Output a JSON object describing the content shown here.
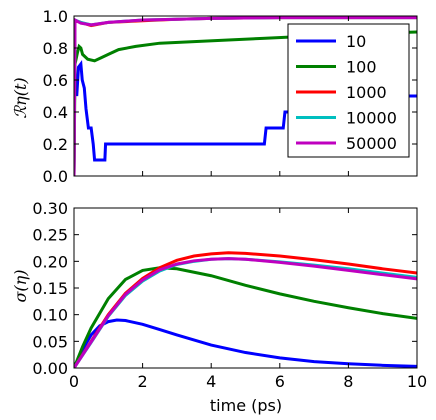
{
  "chart_data": [
    {
      "type": "line",
      "panel": "top",
      "ylabel": "ℛη(t)",
      "xlim": [
        0,
        10
      ],
      "ylim": [
        0,
        1.0
      ],
      "yticks": [
        "0.0",
        "0.2",
        "0.4",
        "0.6",
        "0.8",
        "1.0"
      ],
      "legend_position": "right",
      "series": [
        {
          "name": "10",
          "color": "#0000ff",
          "points": [
            [
              0,
              0
            ],
            [
              0.02,
              0.62
            ],
            [
              0.08,
              0.5
            ],
            [
              0.13,
              0.68
            ],
            [
              0.2,
              0.7
            ],
            [
              0.24,
              0.6
            ],
            [
              0.3,
              0.55
            ],
            [
              0.35,
              0.42
            ],
            [
              0.42,
              0.3
            ],
            [
              0.5,
              0.3
            ],
            [
              0.56,
              0.2
            ],
            [
              0.6,
              0.1
            ],
            [
              0.9,
              0.1
            ],
            [
              0.92,
              0.2
            ],
            [
              5.55,
              0.2
            ],
            [
              5.6,
              0.3
            ],
            [
              6.1,
              0.3
            ],
            [
              6.15,
              0.4
            ],
            [
              7.2,
              0.4
            ],
            [
              7.25,
              0.5
            ],
            [
              10,
              0.5
            ]
          ]
        },
        {
          "name": "100",
          "color": "#008000",
          "points": [
            [
              0,
              0
            ],
            [
              0.03,
              0.7
            ],
            [
              0.1,
              0.77
            ],
            [
              0.15,
              0.81
            ],
            [
              0.2,
              0.8
            ],
            [
              0.25,
              0.76
            ],
            [
              0.3,
              0.75
            ],
            [
              0.4,
              0.73
            ],
            [
              0.6,
              0.72
            ],
            [
              0.8,
              0.74
            ],
            [
              1.0,
              0.76
            ],
            [
              1.3,
              0.79
            ],
            [
              1.8,
              0.81
            ],
            [
              2.5,
              0.83
            ],
            [
              3.5,
              0.84
            ],
            [
              4.5,
              0.85
            ],
            [
              5.5,
              0.86
            ],
            [
              6.5,
              0.87
            ],
            [
              7.5,
              0.88
            ],
            [
              8.5,
              0.89
            ],
            [
              10,
              0.9
            ]
          ]
        },
        {
          "name": "1000",
          "color": "#ff0000",
          "points": [
            [
              0,
              0
            ],
            [
              0.03,
              0.97
            ],
            [
              0.2,
              0.96
            ],
            [
              0.5,
              0.94
            ],
            [
              1.0,
              0.96
            ],
            [
              2,
              0.97
            ],
            [
              3,
              0.98
            ],
            [
              4,
              0.985
            ],
            [
              6,
              0.99
            ],
            [
              8,
              0.99
            ],
            [
              10,
              0.99
            ]
          ]
        },
        {
          "name": "10000",
          "color": "#00bfbf",
          "points": [
            [
              0,
              0
            ],
            [
              0.03,
              0.975
            ],
            [
              0.2,
              0.96
            ],
            [
              0.5,
              0.945
            ],
            [
              1.0,
              0.96
            ],
            [
              2,
              0.975
            ],
            [
              3,
              0.98
            ],
            [
              4,
              0.985
            ],
            [
              6,
              0.99
            ],
            [
              8,
              0.99
            ],
            [
              10,
              0.99
            ]
          ]
        },
        {
          "name": "50000",
          "color": "#bf00bf",
          "points": [
            [
              0,
              0
            ],
            [
              0.03,
              0.975
            ],
            [
              0.2,
              0.955
            ],
            [
              0.5,
              0.945
            ],
            [
              1.0,
              0.96
            ],
            [
              2,
              0.975
            ],
            [
              3,
              0.98
            ],
            [
              4,
              0.985
            ],
            [
              6,
              0.99
            ],
            [
              8,
              0.99
            ],
            [
              10,
              0.99
            ]
          ]
        }
      ]
    },
    {
      "type": "line",
      "panel": "bottom",
      "xlabel": "time (ps)",
      "ylabel": "σ(η)",
      "xlim": [
        0,
        10
      ],
      "ylim": [
        0,
        0.3
      ],
      "xticks": [
        "0",
        "2",
        "4",
        "6",
        "8",
        "10"
      ],
      "yticks": [
        "0.00",
        "0.05",
        "0.10",
        "0.15",
        "0.20",
        "0.25",
        "0.30"
      ],
      "series": [
        {
          "name": "10",
          "color": "#0000ff",
          "points": [
            [
              0,
              0
            ],
            [
              0.25,
              0.035
            ],
            [
              0.5,
              0.062
            ],
            [
              0.75,
              0.079
            ],
            [
              1.0,
              0.087
            ],
            [
              1.25,
              0.09
            ],
            [
              1.5,
              0.089
            ],
            [
              2,
              0.082
            ],
            [
              2.5,
              0.072
            ],
            [
              3,
              0.062
            ],
            [
              4,
              0.043
            ],
            [
              5,
              0.029
            ],
            [
              6,
              0.019
            ],
            [
              7,
              0.012
            ],
            [
              8,
              0.008
            ],
            [
              9,
              0.005
            ],
            [
              10,
              0.003
            ]
          ]
        },
        {
          "name": "100",
          "color": "#008000",
          "points": [
            [
              0,
              0
            ],
            [
              0.25,
              0.04
            ],
            [
              0.5,
              0.075
            ],
            [
              1.0,
              0.13
            ],
            [
              1.5,
              0.166
            ],
            [
              2,
              0.183
            ],
            [
              2.5,
              0.188
            ],
            [
              3,
              0.186
            ],
            [
              4,
              0.173
            ],
            [
              5,
              0.155
            ],
            [
              6,
              0.139
            ],
            [
              7,
              0.125
            ],
            [
              8,
              0.113
            ],
            [
              9,
              0.102
            ],
            [
              10,
              0.093
            ]
          ]
        },
        {
          "name": "1000",
          "color": "#ff0000",
          "points": [
            [
              0,
              0
            ],
            [
              0.5,
              0.05
            ],
            [
              1,
              0.1
            ],
            [
              1.5,
              0.14
            ],
            [
              2,
              0.168
            ],
            [
              2.5,
              0.188
            ],
            [
              3,
              0.202
            ],
            [
              3.5,
              0.21
            ],
            [
              4,
              0.214
            ],
            [
              4.5,
              0.216
            ],
            [
              5,
              0.215
            ],
            [
              6,
              0.21
            ],
            [
              7,
              0.203
            ],
            [
              8,
              0.195
            ],
            [
              9,
              0.186
            ],
            [
              10,
              0.178
            ]
          ]
        },
        {
          "name": "10000",
          "color": "#00bfbf",
          "points": [
            [
              0,
              0
            ],
            [
              0.5,
              0.048
            ],
            [
              1,
              0.097
            ],
            [
              1.5,
              0.136
            ],
            [
              2,
              0.163
            ],
            [
              2.5,
              0.182
            ],
            [
              3,
              0.194
            ],
            [
              3.5,
              0.2
            ],
            [
              4,
              0.204
            ],
            [
              4.5,
              0.205
            ],
            [
              5,
              0.204
            ],
            [
              6,
              0.199
            ],
            [
              7,
              0.193
            ],
            [
              8,
              0.186
            ],
            [
              9,
              0.178
            ],
            [
              10,
              0.17
            ]
          ]
        },
        {
          "name": "50000",
          "color": "#bf00bf",
          "points": [
            [
              0,
              0
            ],
            [
              0.5,
              0.049
            ],
            [
              1,
              0.098
            ],
            [
              1.5,
              0.138
            ],
            [
              2,
              0.165
            ],
            [
              2.5,
              0.184
            ],
            [
              3,
              0.195
            ],
            [
              3.5,
              0.201
            ],
            [
              4,
              0.204
            ],
            [
              4.5,
              0.205
            ],
            [
              5,
              0.204
            ],
            [
              6,
              0.198
            ],
            [
              7,
              0.191
            ],
            [
              8,
              0.183
            ],
            [
              9,
              0.175
            ],
            [
              10,
              0.167
            ]
          ]
        }
      ]
    }
  ]
}
